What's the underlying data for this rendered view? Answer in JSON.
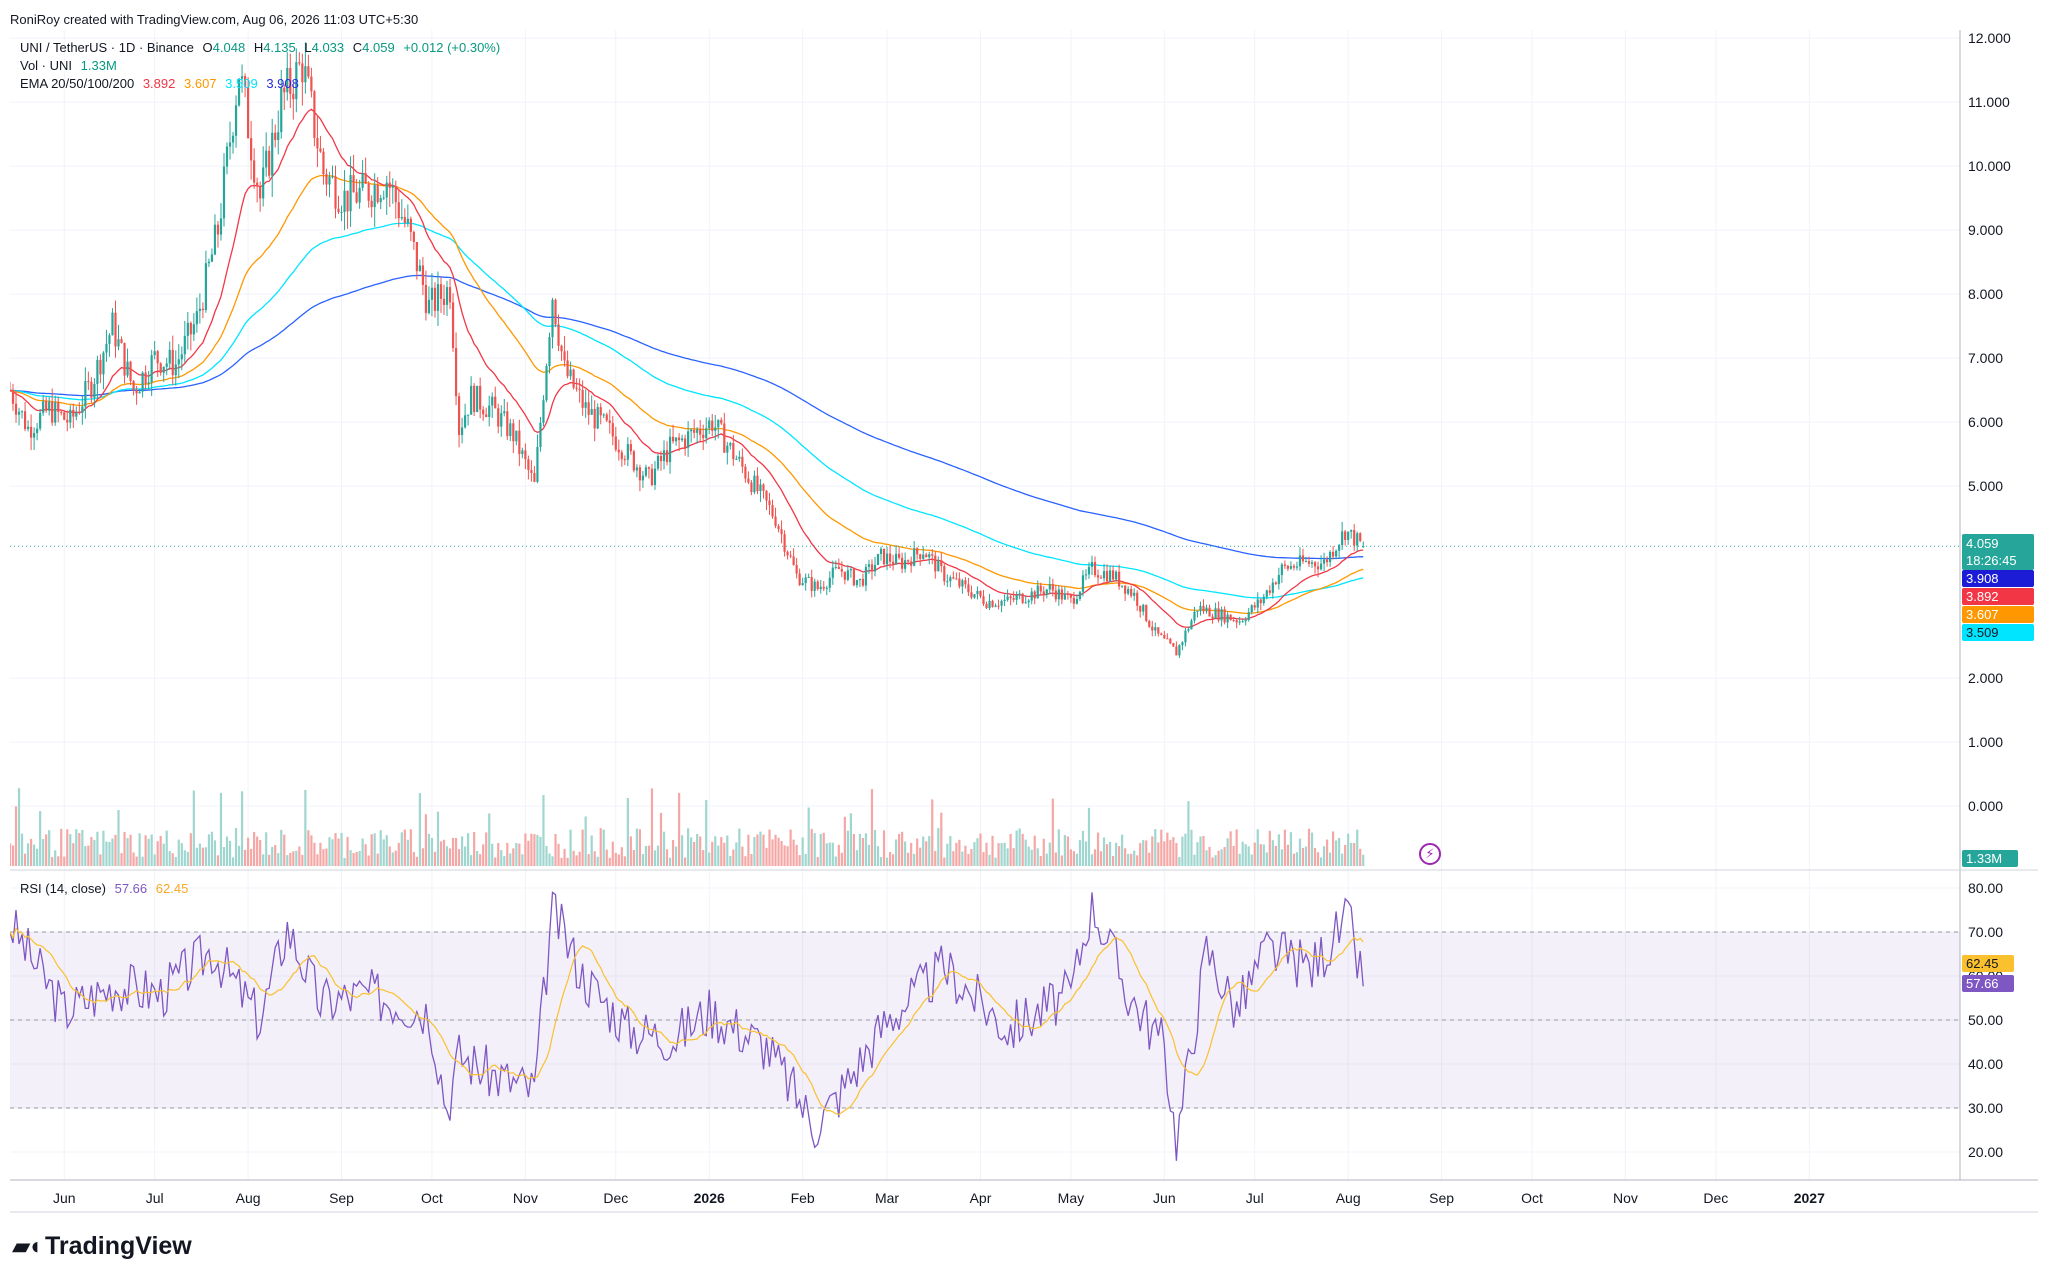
{
  "credit": "RoniRoy created with TradingView.com, Aug 06, 2026 11:03 UTC+5:30",
  "legend": {
    "symbol": "UNI / TetherUS · 1D · Binance",
    "o_label": "O",
    "o": "4.048",
    "h_label": "H",
    "h": "4.135",
    "l_label": "L",
    "l": "4.033",
    "c_label": "C",
    "c": "4.059",
    "change": "+0.012 (+0.30%)",
    "vol_label": "Vol · UNI",
    "vol": "1.33M",
    "ema_label": "EMA 20/50/100/200",
    "ema20": "3.892",
    "ema50": "3.607",
    "ema100": "3.509",
    "ema200": "3.908",
    "rsi_label": "RSI (14, close)",
    "rsi": "57.66",
    "rsi_ma": "62.45"
  },
  "price_tags": {
    "last": "4.059",
    "countdown": "18:26:45",
    "ema200": "3.908",
    "ema20": "3.892",
    "ema50": "3.607",
    "ema100": "3.509",
    "vol": "1.33M",
    "rsi_ma": "62.45",
    "rsi": "57.66"
  },
  "brand": "TradingView",
  "colors": {
    "up": "#26a69a",
    "down": "#ef5350",
    "ema20": "#f23645",
    "ema50": "#ff9800",
    "ema100": "#00e5ff",
    "ema200": "#2962ff",
    "rsi": "#7e57c2",
    "rsi_ma": "#fbc02d",
    "vol_up": "#9fd6cf",
    "vol_down": "#f5a7a5"
  },
  "chart_data": [
    {
      "type": "candlestick",
      "title": "UNI / TetherUS · 1D · Binance",
      "x_ticks": [
        "Jun",
        "Jul",
        "Aug",
        "Sep",
        "Oct",
        "Nov",
        "Dec",
        "2026",
        "Feb",
        "Mar",
        "Apr",
        "May",
        "Jun",
        "Jul",
        "Aug",
        "Sep",
        "Oct",
        "Nov",
        "Dec",
        "2027"
      ],
      "y_ticks": [
        "12.000",
        "11.000",
        "10.000",
        "9.000",
        "8.000",
        "7.000",
        "6.000",
        "5.000",
        "2.000",
        "1.000",
        "0.000"
      ],
      "ylim": [
        0,
        12
      ],
      "price_path": {
        "x": [
          "2025-05-14",
          "2025-05-20",
          "2025-05-27",
          "2025-06-03",
          "2025-06-10",
          "2025-06-17",
          "2025-06-24",
          "2025-07-01",
          "2025-07-08",
          "2025-07-15",
          "2025-07-22",
          "2025-07-29",
          "2025-08-05",
          "2025-08-12",
          "2025-08-19",
          "2025-08-26",
          "2025-09-02",
          "2025-09-09",
          "2025-09-16",
          "2025-09-23",
          "2025-09-30",
          "2025-10-07",
          "2025-10-10",
          "2025-10-14",
          "2025-10-21",
          "2025-10-28",
          "2025-11-04",
          "2025-11-10",
          "2025-11-14",
          "2025-11-21",
          "2025-11-28",
          "2025-12-05",
          "2025-12-12",
          "2025-12-19",
          "2025-12-26",
          "2026-01-02",
          "2026-01-09",
          "2026-01-16",
          "2026-01-23",
          "2026-01-30",
          "2026-02-06",
          "2026-02-13",
          "2026-02-20",
          "2026-02-27",
          "2026-03-06",
          "2026-03-13",
          "2026-03-20",
          "2026-03-27",
          "2026-04-03",
          "2026-04-10",
          "2026-04-17",
          "2026-04-24",
          "2026-05-01",
          "2026-05-08",
          "2026-05-15",
          "2026-05-22",
          "2026-05-29",
          "2026-06-05",
          "2026-06-12",
          "2026-06-19",
          "2026-06-26",
          "2026-07-03",
          "2026-07-10",
          "2026-07-17",
          "2026-07-24",
          "2026-07-31",
          "2026-08-06"
        ],
        "close": [
          6.5,
          5.9,
          6.2,
          6.0,
          6.6,
          7.5,
          6.5,
          7.0,
          6.9,
          7.6,
          9.0,
          11.5,
          9.5,
          11.0,
          11.6,
          9.9,
          9.5,
          9.6,
          9.8,
          9.0,
          7.8,
          8.1,
          5.9,
          6.4,
          6.2,
          5.8,
          5.0,
          8.0,
          6.8,
          6.2,
          5.9,
          5.5,
          5.1,
          5.6,
          5.8,
          6.0,
          5.5,
          5.0,
          4.5,
          3.6,
          3.4,
          3.7,
          3.5,
          3.9,
          3.8,
          4.0,
          3.6,
          3.4,
          3.2,
          3.2,
          3.3,
          3.4,
          3.2,
          3.7,
          3.6,
          3.3,
          2.7,
          2.4,
          3.1,
          3.0,
          2.9,
          3.2,
          3.7,
          3.8,
          3.8,
          4.3,
          4.06
        ]
      },
      "ema_last": {
        "ema20": 3.892,
        "ema50": 3.607,
        "ema100": 3.509,
        "ema200": 3.908
      }
    },
    {
      "type": "line",
      "title": "RSI (14, close)",
      "y_ticks": [
        "80.00",
        "70.00",
        "60.00",
        "50.00",
        "40.00",
        "30.00",
        "20.00"
      ],
      "ylim": [
        15,
        80
      ],
      "band": [
        30,
        70
      ],
      "x": [
        "2025-05-14",
        "2025-06-01",
        "2025-06-18",
        "2025-07-03",
        "2025-07-20",
        "2025-08-05",
        "2025-08-14",
        "2025-08-25",
        "2025-09-10",
        "2025-09-30",
        "2025-10-06",
        "2025-10-10",
        "2025-10-20",
        "2025-11-04",
        "2025-11-10",
        "2025-11-20",
        "2025-12-05",
        "2025-12-20",
        "2026-01-01",
        "2026-01-20",
        "2026-02-05",
        "2026-02-12",
        "2026-03-01",
        "2026-03-20",
        "2026-04-10",
        "2026-05-01",
        "2026-05-08",
        "2026-05-20",
        "2026-06-01",
        "2026-06-05",
        "2026-06-15",
        "2026-06-25",
        "2026-07-05",
        "2026-07-20",
        "2026-08-01",
        "2026-08-06"
      ],
      "values": [
        72,
        52,
        58,
        56,
        66,
        50,
        71,
        54,
        56,
        52,
        30,
        42,
        38,
        34,
        75,
        60,
        48,
        46,
        52,
        44,
        26,
        32,
        50,
        62,
        48,
        56,
        77,
        56,
        44,
        22,
        66,
        52,
        66,
        62,
        73,
        57.66
      ],
      "ma_last": 62.45
    }
  ]
}
